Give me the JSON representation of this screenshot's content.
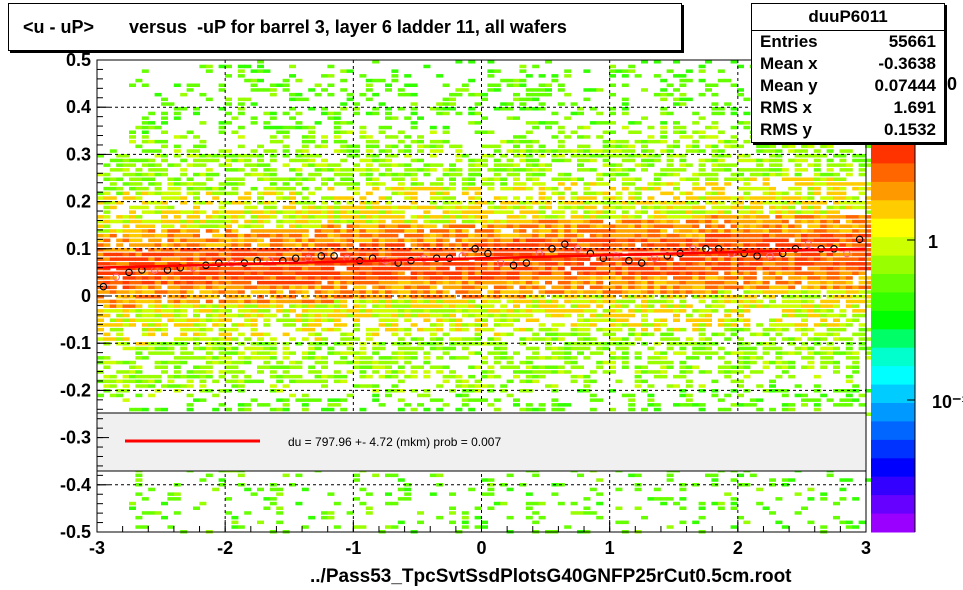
{
  "title": "<u - uP>       versus  -uP for barrel 3, layer 6 ladder 11, all wafers",
  "stats": {
    "name": "duuP6011",
    "rows": [
      {
        "label": "Entries",
        "value": "55661"
      },
      {
        "label": "Mean x",
        "value": "-0.3638"
      },
      {
        "label": "Mean y",
        "value": "0.07444"
      },
      {
        "label": "RMS x",
        "value": "1.691"
      },
      {
        "label": "RMS y",
        "value": "0.1532"
      }
    ]
  },
  "footer": "../Pass53_TpcSvtSsdPlotsG40GNFP25rCut0.5cm.root",
  "legend": {
    "fit_text": "du =  797.96 +-  4.72 (mkm) prob = 0.007"
  },
  "colorbar": {
    "labels": [
      "1",
      "10⁻¹"
    ],
    "partial_label_top": "0"
  },
  "chart_data": {
    "type": "heatmap",
    "title": "<u - uP>       versus  -uP for barrel 3, layer 6 ladder 11, all wafers",
    "xlim": [
      -3,
      3
    ],
    "ylim": [
      -0.5,
      0.5
    ],
    "x_ticks": [
      "-3",
      "-2",
      "-1",
      "0",
      "1",
      "2",
      "3"
    ],
    "y_ticks": [
      "-0.5",
      "-0.4",
      "-0.3",
      "-0.2",
      "-0.1",
      "0",
      "0.1",
      "0.2",
      "0.3",
      "0.4",
      "0.5"
    ],
    "grid": true,
    "profile_points": {
      "x": [
        -2.95,
        -2.85,
        -2.75,
        -2.65,
        -2.55,
        -2.45,
        -2.35,
        -2.25,
        -2.15,
        -2.05,
        -1.95,
        -1.85,
        -1.75,
        -1.65,
        -1.55,
        -1.45,
        -1.35,
        -1.25,
        -1.15,
        -1.05,
        -0.95,
        -0.85,
        -0.75,
        -0.65,
        -0.55,
        -0.45,
        -0.35,
        -0.25,
        -0.15,
        -0.05,
        0.05,
        0.15,
        0.25,
        0.35,
        0.45,
        0.55,
        0.65,
        0.75,
        0.85,
        0.95,
        1.05,
        1.15,
        1.25,
        1.35,
        1.45,
        1.55,
        1.65,
        1.75,
        1.85,
        1.95,
        2.05,
        2.15,
        2.25,
        2.35,
        2.45,
        2.55,
        2.65,
        2.75,
        2.85,
        2.95
      ],
      "y": [
        0.02,
        0.04,
        0.05,
        0.055,
        0.055,
        0.055,
        0.06,
        0.06,
        0.065,
        0.07,
        0.07,
        0.07,
        0.075,
        0.075,
        0.075,
        0.08,
        0.08,
        0.085,
        0.085,
        0.08,
        0.075,
        0.08,
        0.075,
        0.07,
        0.075,
        0.08,
        0.08,
        0.08,
        0.085,
        0.1,
        0.09,
        0.07,
        0.065,
        0.07,
        0.09,
        0.1,
        0.11,
        0.1,
        0.09,
        0.08,
        0.085,
        0.075,
        0.07,
        0.08,
        0.085,
        0.09,
        0.1,
        0.1,
        0.1,
        0.09,
        0.09,
        0.085,
        0.085,
        0.09,
        0.1,
        0.11,
        0.1,
        0.1,
        0.09,
        0.12
      ]
    },
    "fit_line": {
      "x": [
        -3,
        3
      ],
      "y": [
        0.06,
        0.1
      ]
    },
    "legend_placement": "inside-bottom",
    "colors": {
      "fit": "#ff0000",
      "markers": "#000000"
    }
  }
}
